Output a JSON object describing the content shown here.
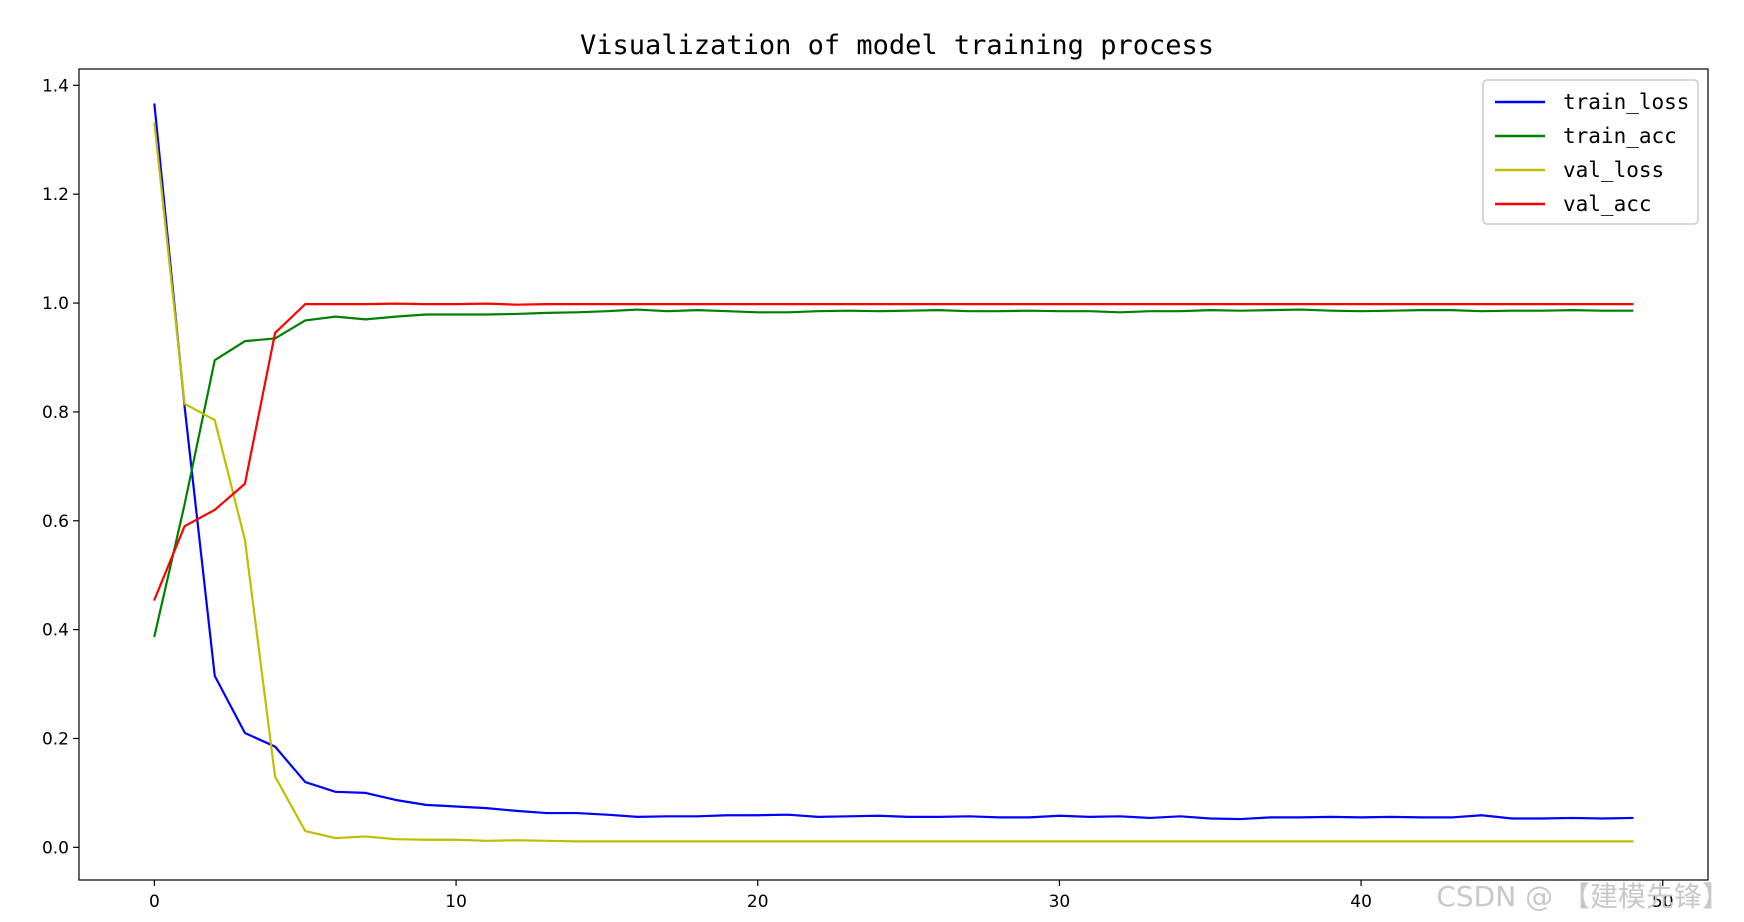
{
  "chart_data": {
    "type": "line",
    "title": "Visualization of model training process",
    "xlabel": "",
    "ylabel": "",
    "xlim": [
      -2.5,
      51.5
    ],
    "ylim": [
      -0.06,
      1.43
    ],
    "xticks": [
      0,
      10,
      20,
      30,
      40,
      50
    ],
    "yticks": [
      0.0,
      0.2,
      0.4,
      0.6,
      0.8,
      1.0,
      1.2,
      1.4
    ],
    "grid": false,
    "legend_position": "upper right",
    "x": [
      0,
      1,
      2,
      3,
      4,
      5,
      6,
      7,
      8,
      9,
      10,
      11,
      12,
      13,
      14,
      15,
      16,
      17,
      18,
      19,
      20,
      21,
      22,
      23,
      24,
      25,
      26,
      27,
      28,
      29,
      30,
      31,
      32,
      33,
      34,
      35,
      36,
      37,
      38,
      39,
      40,
      41,
      42,
      43,
      44,
      45,
      46,
      47,
      48,
      49
    ],
    "series": [
      {
        "name": "train_loss",
        "color": "#0000ff",
        "values": [
          1.365,
          0.81,
          0.315,
          0.21,
          0.185,
          0.12,
          0.102,
          0.1,
          0.087,
          0.078,
          0.075,
          0.072,
          0.067,
          0.063,
          0.063,
          0.06,
          0.056,
          0.057,
          0.057,
          0.059,
          0.059,
          0.06,
          0.056,
          0.057,
          0.058,
          0.056,
          0.056,
          0.057,
          0.055,
          0.055,
          0.058,
          0.056,
          0.057,
          0.054,
          0.057,
          0.053,
          0.052,
          0.055,
          0.055,
          0.056,
          0.055,
          0.056,
          0.055,
          0.055,
          0.059,
          0.053,
          0.053,
          0.054,
          0.053,
          0.054
        ]
      },
      {
        "name": "train_acc",
        "color": "#008000",
        "values": [
          0.388,
          0.63,
          0.895,
          0.93,
          0.935,
          0.968,
          0.975,
          0.97,
          0.975,
          0.979,
          0.979,
          0.979,
          0.98,
          0.982,
          0.983,
          0.985,
          0.988,
          0.985,
          0.987,
          0.985,
          0.983,
          0.983,
          0.985,
          0.986,
          0.985,
          0.986,
          0.987,
          0.985,
          0.985,
          0.986,
          0.985,
          0.985,
          0.983,
          0.985,
          0.985,
          0.987,
          0.986,
          0.987,
          0.988,
          0.986,
          0.985,
          0.986,
          0.987,
          0.987,
          0.985,
          0.986,
          0.986,
          0.987,
          0.986,
          0.986
        ]
      },
      {
        "name": "val_loss",
        "color": "#bfbf00",
        "values": [
          1.33,
          0.815,
          0.785,
          0.565,
          0.13,
          0.03,
          0.017,
          0.02,
          0.015,
          0.014,
          0.014,
          0.012,
          0.013,
          0.012,
          0.011,
          0.011,
          0.011,
          0.011,
          0.011,
          0.011,
          0.011,
          0.011,
          0.011,
          0.011,
          0.011,
          0.011,
          0.011,
          0.011,
          0.011,
          0.011,
          0.011,
          0.011,
          0.011,
          0.011,
          0.011,
          0.011,
          0.011,
          0.011,
          0.011,
          0.011,
          0.011,
          0.011,
          0.011,
          0.011,
          0.011,
          0.011,
          0.011,
          0.011,
          0.011,
          0.011
        ]
      },
      {
        "name": "val_acc",
        "color": "#ff0000",
        "values": [
          0.455,
          0.59,
          0.62,
          0.668,
          0.945,
          0.998,
          0.998,
          0.998,
          0.999,
          0.998,
          0.998,
          0.999,
          0.997,
          0.998,
          0.998,
          0.998,
          0.998,
          0.998,
          0.998,
          0.998,
          0.998,
          0.998,
          0.998,
          0.998,
          0.998,
          0.998,
          0.998,
          0.998,
          0.998,
          0.998,
          0.998,
          0.998,
          0.998,
          0.998,
          0.998,
          0.998,
          0.998,
          0.998,
          0.998,
          0.998,
          0.998,
          0.998,
          0.998,
          0.998,
          0.998,
          0.998,
          0.998,
          0.998,
          0.998,
          0.998
        ]
      }
    ]
  },
  "watermark": "CSDN @ 【建模先锋】"
}
